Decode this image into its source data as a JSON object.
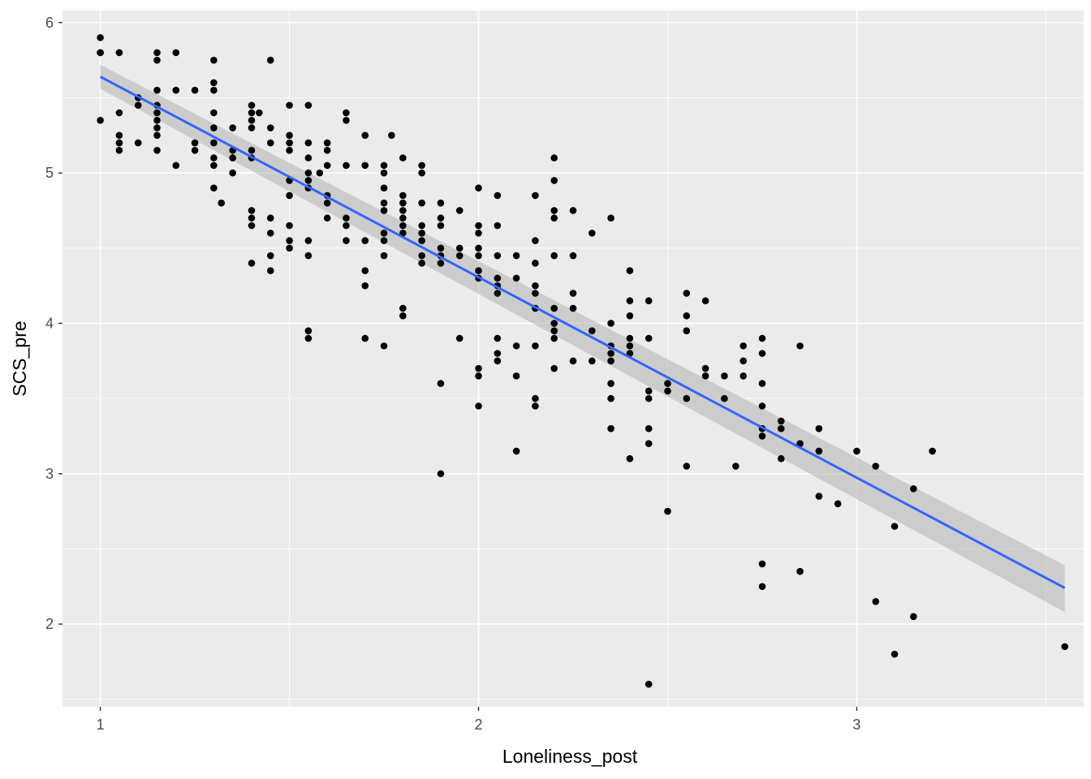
{
  "chart_data": {
    "type": "scatter",
    "xlabel": "Loneliness_post",
    "ylabel": "SCS_pre",
    "xlim": [
      0.9,
      3.6
    ],
    "ylim": [
      1.45,
      6.08
    ],
    "x_ticks": [
      1,
      2,
      3
    ],
    "y_ticks": [
      2,
      3,
      4,
      5,
      6
    ],
    "grid": true,
    "panel_color": "#ebebeb",
    "point_color": "#000000",
    "line_color": "#3366ff",
    "ribbon_color": "#b3b3b3",
    "fit_line": {
      "x": [
        1.0,
        3.55
      ],
      "y": [
        5.64,
        2.24
      ],
      "ci_lower": [
        5.56,
        2.08
      ],
      "ci_upper": [
        5.72,
        2.39
      ]
    },
    "points": [
      [
        1.0,
        5.9
      ],
      [
        1.0,
        5.8
      ],
      [
        1.0,
        5.8
      ],
      [
        1.0,
        5.35
      ],
      [
        1.05,
        5.8
      ],
      [
        1.05,
        5.4
      ],
      [
        1.05,
        5.25
      ],
      [
        1.05,
        5.2
      ],
      [
        1.05,
        5.15
      ],
      [
        1.1,
        5.5
      ],
      [
        1.1,
        5.45
      ],
      [
        1.1,
        5.2
      ],
      [
        1.15,
        5.8
      ],
      [
        1.15,
        5.75
      ],
      [
        1.15,
        5.55
      ],
      [
        1.15,
        5.45
      ],
      [
        1.15,
        5.4
      ],
      [
        1.15,
        5.35
      ],
      [
        1.15,
        5.3
      ],
      [
        1.15,
        5.25
      ],
      [
        1.15,
        5.15
      ],
      [
        1.2,
        5.8
      ],
      [
        1.2,
        5.55
      ],
      [
        1.2,
        5.05
      ],
      [
        1.25,
        5.55
      ],
      [
        1.25,
        5.2
      ],
      [
        1.25,
        5.15
      ],
      [
        1.3,
        5.75
      ],
      [
        1.3,
        5.6
      ],
      [
        1.3,
        5.55
      ],
      [
        1.3,
        5.4
      ],
      [
        1.3,
        5.3
      ],
      [
        1.3,
        5.2
      ],
      [
        1.3,
        5.1
      ],
      [
        1.3,
        5.05
      ],
      [
        1.3,
        4.9
      ],
      [
        1.32,
        4.8
      ],
      [
        1.35,
        5.3
      ],
      [
        1.35,
        5.15
      ],
      [
        1.35,
        5.1
      ],
      [
        1.35,
        5.0
      ],
      [
        1.4,
        5.45
      ],
      [
        1.4,
        5.4
      ],
      [
        1.4,
        5.35
      ],
      [
        1.4,
        5.3
      ],
      [
        1.4,
        5.15
      ],
      [
        1.4,
        5.1
      ],
      [
        1.4,
        4.75
      ],
      [
        1.4,
        4.7
      ],
      [
        1.4,
        4.65
      ],
      [
        1.4,
        4.4
      ],
      [
        1.42,
        5.4
      ],
      [
        1.45,
        5.75
      ],
      [
        1.45,
        5.3
      ],
      [
        1.45,
        5.2
      ],
      [
        1.45,
        4.7
      ],
      [
        1.45,
        4.6
      ],
      [
        1.45,
        4.45
      ],
      [
        1.45,
        4.35
      ],
      [
        1.5,
        5.45
      ],
      [
        1.5,
        5.25
      ],
      [
        1.5,
        5.2
      ],
      [
        1.5,
        5.15
      ],
      [
        1.5,
        4.95
      ],
      [
        1.5,
        4.85
      ],
      [
        1.5,
        4.65
      ],
      [
        1.5,
        4.55
      ],
      [
        1.5,
        4.5
      ],
      [
        1.55,
        5.45
      ],
      [
        1.55,
        5.2
      ],
      [
        1.55,
        5.1
      ],
      [
        1.55,
        5.0
      ],
      [
        1.55,
        4.95
      ],
      [
        1.55,
        4.9
      ],
      [
        1.55,
        4.55
      ],
      [
        1.55,
        4.45
      ],
      [
        1.55,
        3.95
      ],
      [
        1.55,
        3.9
      ],
      [
        1.58,
        5.0
      ],
      [
        1.6,
        5.2
      ],
      [
        1.6,
        5.15
      ],
      [
        1.6,
        5.05
      ],
      [
        1.6,
        4.85
      ],
      [
        1.6,
        4.8
      ],
      [
        1.6,
        4.7
      ],
      [
        1.65,
        5.4
      ],
      [
        1.65,
        5.35
      ],
      [
        1.65,
        5.05
      ],
      [
        1.65,
        4.7
      ],
      [
        1.65,
        4.65
      ],
      [
        1.65,
        4.55
      ],
      [
        1.7,
        5.25
      ],
      [
        1.7,
        5.05
      ],
      [
        1.7,
        4.55
      ],
      [
        1.7,
        4.35
      ],
      [
        1.7,
        4.25
      ],
      [
        1.7,
        3.9
      ],
      [
        1.75,
        5.05
      ],
      [
        1.75,
        5.0
      ],
      [
        1.75,
        4.9
      ],
      [
        1.75,
        4.8
      ],
      [
        1.75,
        4.75
      ],
      [
        1.75,
        4.6
      ],
      [
        1.75,
        4.55
      ],
      [
        1.75,
        4.45
      ],
      [
        1.75,
        3.85
      ],
      [
        1.77,
        5.25
      ],
      [
        1.8,
        5.1
      ],
      [
        1.8,
        4.85
      ],
      [
        1.8,
        4.8
      ],
      [
        1.8,
        4.75
      ],
      [
        1.8,
        4.7
      ],
      [
        1.8,
        4.65
      ],
      [
        1.8,
        4.6
      ],
      [
        1.8,
        4.1
      ],
      [
        1.8,
        4.05
      ],
      [
        1.85,
        5.05
      ],
      [
        1.85,
        5.0
      ],
      [
        1.85,
        4.8
      ],
      [
        1.85,
        4.65
      ],
      [
        1.85,
        4.6
      ],
      [
        1.85,
        4.55
      ],
      [
        1.85,
        4.45
      ],
      [
        1.85,
        4.4
      ],
      [
        1.9,
        4.8
      ],
      [
        1.9,
        4.7
      ],
      [
        1.9,
        4.65
      ],
      [
        1.9,
        4.5
      ],
      [
        1.9,
        4.45
      ],
      [
        1.9,
        4.4
      ],
      [
        1.9,
        3.6
      ],
      [
        1.9,
        3.0
      ],
      [
        1.95,
        4.75
      ],
      [
        1.95,
        4.5
      ],
      [
        1.95,
        4.45
      ],
      [
        1.95,
        3.9
      ],
      [
        2.0,
        4.9
      ],
      [
        2.0,
        4.65
      ],
      [
        2.0,
        4.6
      ],
      [
        2.0,
        4.5
      ],
      [
        2.0,
        4.45
      ],
      [
        2.0,
        4.35
      ],
      [
        2.0,
        4.3
      ],
      [
        2.0,
        3.7
      ],
      [
        2.0,
        3.65
      ],
      [
        2.0,
        3.45
      ],
      [
        2.05,
        4.85
      ],
      [
        2.05,
        4.65
      ],
      [
        2.05,
        4.45
      ],
      [
        2.05,
        4.3
      ],
      [
        2.05,
        4.25
      ],
      [
        2.05,
        4.2
      ],
      [
        2.05,
        3.9
      ],
      [
        2.05,
        3.8
      ],
      [
        2.05,
        3.75
      ],
      [
        2.1,
        4.45
      ],
      [
        2.1,
        4.3
      ],
      [
        2.1,
        3.85
      ],
      [
        2.1,
        3.65
      ],
      [
        2.1,
        3.15
      ],
      [
        2.15,
        4.85
      ],
      [
        2.15,
        4.55
      ],
      [
        2.15,
        4.4
      ],
      [
        2.15,
        4.25
      ],
      [
        2.15,
        4.2
      ],
      [
        2.15,
        4.1
      ],
      [
        2.15,
        3.85
      ],
      [
        2.15,
        3.5
      ],
      [
        2.15,
        3.45
      ],
      [
        2.2,
        5.1
      ],
      [
        2.2,
        4.95
      ],
      [
        2.2,
        4.75
      ],
      [
        2.2,
        4.7
      ],
      [
        2.2,
        4.45
      ],
      [
        2.2,
        4.1
      ],
      [
        2.2,
        4.0
      ],
      [
        2.2,
        3.95
      ],
      [
        2.2,
        3.9
      ],
      [
        2.2,
        3.7
      ],
      [
        2.25,
        4.75
      ],
      [
        2.25,
        4.45
      ],
      [
        2.25,
        4.2
      ],
      [
        2.25,
        4.1
      ],
      [
        2.25,
        3.75
      ],
      [
        2.3,
        4.6
      ],
      [
        2.3,
        3.95
      ],
      [
        2.3,
        3.75
      ],
      [
        2.35,
        4.7
      ],
      [
        2.35,
        4.0
      ],
      [
        2.35,
        3.85
      ],
      [
        2.35,
        3.8
      ],
      [
        2.35,
        3.75
      ],
      [
        2.35,
        3.6
      ],
      [
        2.35,
        3.5
      ],
      [
        2.35,
        3.3
      ],
      [
        2.4,
        4.35
      ],
      [
        2.4,
        4.15
      ],
      [
        2.4,
        4.05
      ],
      [
        2.4,
        3.9
      ],
      [
        2.4,
        3.85
      ],
      [
        2.4,
        3.8
      ],
      [
        2.4,
        3.1
      ],
      [
        2.45,
        4.15
      ],
      [
        2.45,
        3.9
      ],
      [
        2.45,
        3.55
      ],
      [
        2.45,
        3.5
      ],
      [
        2.45,
        3.3
      ],
      [
        2.45,
        3.2
      ],
      [
        2.45,
        1.6
      ],
      [
        2.5,
        3.6
      ],
      [
        2.5,
        3.55
      ],
      [
        2.5,
        2.75
      ],
      [
        2.55,
        4.2
      ],
      [
        2.55,
        4.05
      ],
      [
        2.55,
        3.95
      ],
      [
        2.55,
        3.5
      ],
      [
        2.55,
        3.05
      ],
      [
        2.6,
        4.15
      ],
      [
        2.6,
        3.7
      ],
      [
        2.6,
        3.65
      ],
      [
        2.65,
        3.65
      ],
      [
        2.65,
        3.5
      ],
      [
        2.68,
        3.05
      ],
      [
        2.7,
        3.85
      ],
      [
        2.7,
        3.75
      ],
      [
        2.7,
        3.65
      ],
      [
        2.75,
        3.9
      ],
      [
        2.75,
        3.8
      ],
      [
        2.75,
        3.6
      ],
      [
        2.75,
        3.45
      ],
      [
        2.75,
        3.3
      ],
      [
        2.75,
        3.25
      ],
      [
        2.75,
        2.4
      ],
      [
        2.75,
        2.25
      ],
      [
        2.8,
        3.35
      ],
      [
        2.8,
        3.3
      ],
      [
        2.8,
        3.1
      ],
      [
        2.85,
        3.85
      ],
      [
        2.85,
        3.2
      ],
      [
        2.85,
        2.35
      ],
      [
        2.9,
        3.3
      ],
      [
        2.9,
        3.15
      ],
      [
        2.9,
        2.85
      ],
      [
        2.95,
        2.8
      ],
      [
        3.0,
        3.15
      ],
      [
        3.05,
        3.05
      ],
      [
        3.05,
        2.15
      ],
      [
        3.1,
        2.65
      ],
      [
        3.1,
        1.8
      ],
      [
        3.15,
        2.9
      ],
      [
        3.15,
        2.05
      ],
      [
        3.2,
        3.15
      ],
      [
        3.55,
        1.85
      ]
    ]
  }
}
